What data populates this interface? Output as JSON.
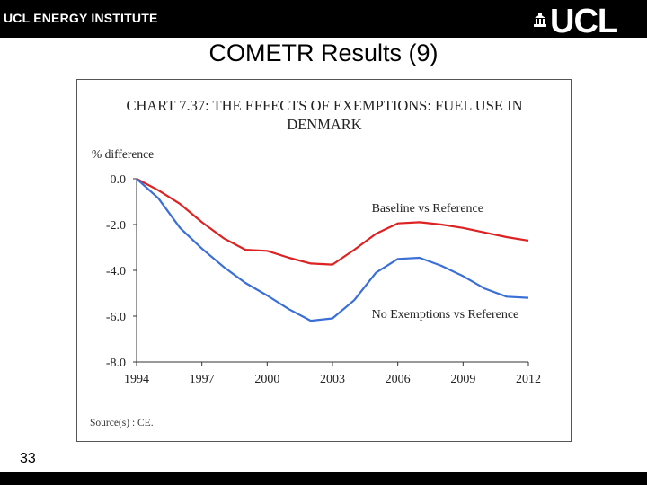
{
  "header": {
    "institute": "UCL ENERGY INSTITUTE",
    "logo": "UCL",
    "logo_icon": "portico-icon"
  },
  "slide": {
    "title": "COMETR Results (9)",
    "page_number": "33"
  },
  "colors": {
    "bar": "#000000",
    "baseline_series": "#dd2222",
    "exemptions_series": "#3b6fd8",
    "axis": "#333333"
  },
  "chart_data": {
    "type": "line",
    "title": "CHART 7.37: THE EFFECTS OF EXEMPTIONS: FUEL USE IN DENMARK",
    "title_lines": [
      "CHART 7.37: THE EFFECTS OF EXEMPTIONS: FUEL USE IN",
      "DENMARK"
    ],
    "ylabel": "% difference",
    "xlabel": "",
    "source": "Source(s)  :  CE.",
    "x": [
      1994,
      1995,
      1996,
      1997,
      1998,
      1999,
      2000,
      2001,
      2002,
      2003,
      2004,
      2005,
      2006,
      2007,
      2008,
      2009,
      2010,
      2011,
      2012
    ],
    "xlim": [
      1994,
      2012
    ],
    "ylim": [
      -8.0,
      0.0
    ],
    "x_ticks": [
      "1994",
      "1997",
      "2000",
      "2003",
      "2006",
      "2009",
      "2012"
    ],
    "y_ticks": [
      "0.0",
      "-2.0",
      "-4.0",
      "-6.0",
      "-8.0"
    ],
    "grid": false,
    "series": [
      {
        "name": "Baseline vs Reference",
        "values": [
          0.0,
          -0.5,
          -1.1,
          -1.9,
          -2.6,
          -3.1,
          -3.15,
          -3.45,
          -3.7,
          -3.75,
          -3.1,
          -2.4,
          -1.95,
          -1.9,
          -2.0,
          -2.15,
          -2.35,
          -2.55,
          -2.7
        ]
      },
      {
        "name": "No Exemptions vs Reference",
        "values": [
          0.0,
          -0.85,
          -2.15,
          -3.05,
          -3.85,
          -4.55,
          -5.1,
          -5.7,
          -6.2,
          -6.1,
          -5.3,
          -4.1,
          -3.5,
          -3.45,
          -3.8,
          -4.25,
          -4.8,
          -5.15,
          -5.2
        ]
      }
    ]
  }
}
